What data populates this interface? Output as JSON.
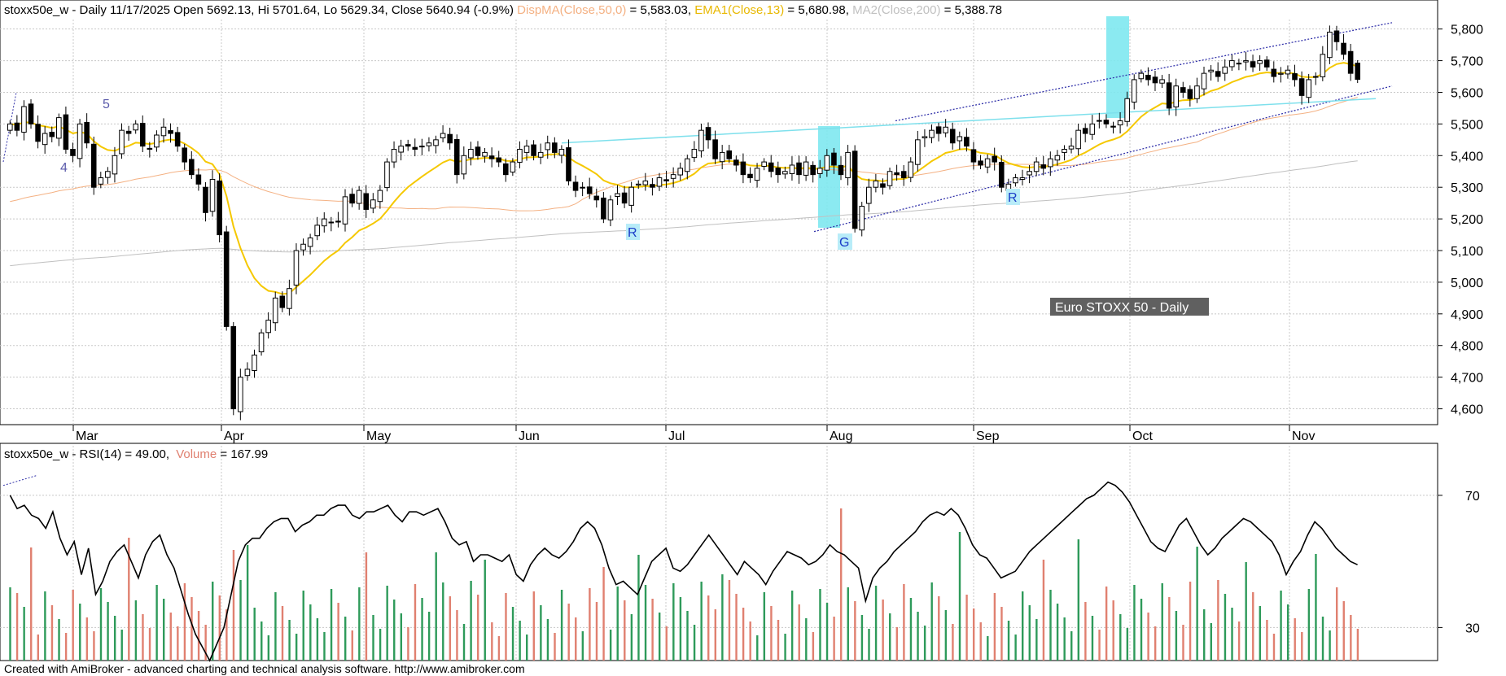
{
  "price_panel": {
    "symbol": "stoxx50e_w",
    "header_main": "stoxx50e_w - Daily 11/17/2025 Open 5692.13, Hi 5701.64, Lo 5629.34, Close 5640.94 (-0.9%)",
    "header_dispma": "DispMA(Close,50,0)",
    "header_dispma_value": " = 5,583.03,",
    "header_ema": "EMA1(Close,13)",
    "header_ema_value": " = 5,680.98,",
    "header_ma2": "MA2(Close,200)",
    "header_ma2_value": " = 5,388.78",
    "title_box": "Euro STOXX 50 - Daily",
    "y_ticks": [
      "5,800",
      "5,700",
      "5,600",
      "5,500",
      "5,400",
      "5,300",
      "5,200",
      "5,100",
      "5,000",
      "4,900",
      "4,800",
      "4,700",
      "4,600"
    ],
    "months": [
      "Mar",
      "Apr",
      "May",
      "Jun",
      "Jul",
      "Aug",
      "Sep",
      "Oct",
      "Nov"
    ],
    "wave_labels": [
      "5",
      "4"
    ],
    "markers": [
      "R",
      "G",
      "R"
    ]
  },
  "rsi_panel": {
    "header_rsi": "stoxx50e_w - RSI(14) = 49.00,",
    "header_volume": "Volume",
    "header_volume_value": " = 167.99",
    "y_ticks": [
      "70",
      "30"
    ]
  },
  "footer": "Created with AmiBroker - advanced charting and technical analysis software. http://www.amibroker.com",
  "colors": {
    "dispma": "#f4b183",
    "ema": "#f5c800",
    "ma2": "#c0c0c0",
    "volume_up": "#2e9a5a",
    "volume_down": "#e08070",
    "highlight": "#7ee8f0",
    "channel": "#3333aa",
    "trendline": "#7ee0ec",
    "marker_bg": "#b8ecf8",
    "marker_text": "#1a3cc8",
    "wave_label": "#5a5aaa",
    "title_box_bg": "#606060"
  },
  "chart_data": [
    {
      "type": "candlestick",
      "title": "Euro STOXX 50 - Daily",
      "x_axis": [
        "Mar",
        "Apr",
        "May",
        "Jun",
        "Jul",
        "Aug",
        "Sep",
        "Oct",
        "Nov"
      ],
      "ylim": [
        4550,
        5830
      ],
      "y_ticks": [
        4600,
        4700,
        4800,
        4900,
        5000,
        5100,
        5200,
        5300,
        5400,
        5500,
        5600,
        5700,
        5800
      ],
      "grid": true,
      "last_bar": {
        "date": "11/17/2025",
        "open": 5692.13,
        "high": 5701.64,
        "low": 5629.34,
        "close": 5640.94,
        "change_pct": -0.9
      },
      "closes": [
        5500,
        5480,
        5555,
        5500,
        5445,
        5470,
        5460,
        5520,
        5420,
        5400,
        5500,
        5440,
        5300,
        5330,
        5350,
        5400,
        5480,
        5470,
        5500,
        5430,
        5420,
        5465,
        5490,
        5470,
        5430,
        5380,
        5340,
        5310,
        5220,
        5325,
        5150,
        4860,
        4600,
        4700,
        4725,
        4770,
        4840,
        4880,
        4950,
        4920,
        4980,
        5100,
        5120,
        5140,
        5180,
        5200,
        5190,
        5190,
        5270,
        5250,
        5290,
        5230,
        5260,
        5290,
        5380,
        5420,
        5430,
        5430,
        5420,
        5430,
        5440,
        5450,
        5470,
        5440,
        5340,
        5400,
        5420,
        5400,
        5410,
        5390,
        5380,
        5340,
        5380,
        5420,
        5430,
        5400,
        5410,
        5440,
        5410,
        5420,
        5320,
        5290,
        5300,
        5280,
        5260,
        5200,
        5260,
        5280,
        5250,
        5300,
        5310,
        5320,
        5300,
        5330,
        5320,
        5340,
        5360,
        5390,
        5420,
        5480,
        5450,
        5390,
        5410,
        5390,
        5370,
        5340,
        5330,
        5360,
        5380,
        5350,
        5340,
        5350,
        5370,
        5340,
        5380,
        5340,
        5360,
        5400,
        5370,
        5340,
        5410,
        5170,
        5240,
        5300,
        5320,
        5300,
        5350,
        5340,
        5330,
        5380,
        5450,
        5460,
        5480,
        5470,
        5490,
        5440,
        5460,
        5430,
        5380,
        5370,
        5390,
        5380,
        5300,
        5310,
        5330,
        5330,
        5350,
        5380,
        5360,
        5390,
        5400,
        5420,
        5430,
        5480,
        5470,
        5500,
        5510,
        5500,
        5490,
        5510,
        5580,
        5640,
        5660,
        5640,
        5630,
        5640,
        5550,
        5620,
        5600,
        5580,
        5620,
        5660,
        5670,
        5650,
        5680,
        5700,
        5690,
        5700,
        5680,
        5700,
        5680,
        5650,
        5660,
        5670,
        5640,
        5590,
        5640,
        5650,
        5720,
        5790,
        5760,
        5720,
        5660,
        5641
      ],
      "ema13_last": 5680.98,
      "dispma50_last": 5583.03,
      "ma200_last": 5388.78
    },
    {
      "type": "line",
      "title": "RSI(14)",
      "ylim": [
        20,
        85
      ],
      "y_ticks": [
        30,
        70
      ],
      "last_value": 49.0,
      "volume_last": 167.99,
      "series": [
        {
          "name": "RSI(14)",
          "values": [
            70,
            66,
            67,
            64,
            63,
            60,
            65,
            57,
            52,
            56,
            46,
            54,
            40,
            44,
            50,
            53,
            55,
            50,
            45,
            52,
            56,
            58,
            52,
            48,
            41,
            34,
            28,
            24,
            20,
            25,
            30,
            40,
            50,
            55,
            57,
            57,
            60,
            62,
            63,
            63,
            59,
            61,
            62,
            64,
            64,
            66,
            67,
            67,
            64,
            63,
            65,
            65,
            66,
            67,
            64,
            62,
            65,
            65,
            64,
            65,
            66,
            62,
            57,
            55,
            56,
            50,
            52,
            52,
            51,
            50,
            52,
            46,
            44,
            49,
            52,
            54,
            52,
            51,
            53,
            56,
            60,
            62,
            60,
            55,
            48,
            43,
            44,
            42,
            40,
            45,
            50,
            52,
            54,
            48,
            47,
            49,
            52,
            55,
            58,
            55,
            52,
            49,
            46,
            50,
            48,
            46,
            43,
            47,
            50,
            53,
            52,
            51,
            49,
            50,
            52,
            55,
            53,
            52,
            50,
            48,
            38,
            45,
            48,
            50,
            53,
            55,
            57,
            59,
            62,
            64,
            65,
            64,
            66,
            64,
            60,
            55,
            52,
            51,
            48,
            45,
            46,
            47,
            50,
            53,
            55,
            57,
            59,
            61,
            63,
            65,
            67,
            69,
            70,
            72,
            74,
            73,
            71,
            68,
            64,
            60,
            56,
            54,
            53,
            57,
            61,
            63,
            59,
            55,
            52,
            54,
            57,
            59,
            61,
            63,
            62,
            60,
            58,
            56,
            52,
            46,
            50,
            53,
            58,
            62,
            60,
            57,
            54,
            52,
            50,
            49
          ]
        },
        {
          "name": "Volume",
          "values": []
        }
      ]
    }
  ]
}
